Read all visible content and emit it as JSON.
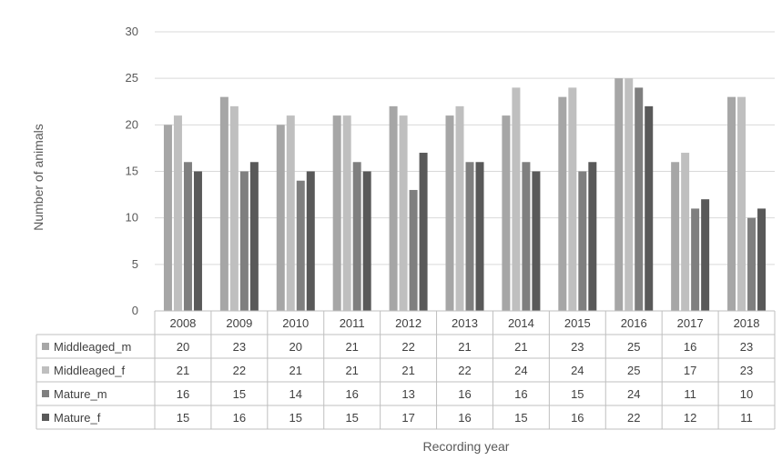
{
  "chart_data": {
    "type": "bar",
    "categories": [
      "2008",
      "2009",
      "2010",
      "2011",
      "2012",
      "2013",
      "2014",
      "2015",
      "2016",
      "2017",
      "2018"
    ],
    "series": [
      {
        "name": "Middleaged_m",
        "values": [
          20,
          23,
          20,
          21,
          22,
          21,
          21,
          23,
          25,
          16,
          23
        ],
        "color": "#a6a6a6"
      },
      {
        "name": "Middleaged_f",
        "values": [
          21,
          22,
          21,
          21,
          21,
          22,
          24,
          24,
          25,
          17,
          23
        ],
        "color": "#bfbfbf"
      },
      {
        "name": "Mature_m",
        "values": [
          16,
          15,
          14,
          16,
          13,
          16,
          16,
          15,
          24,
          11,
          10
        ],
        "color": "#7f7f7f"
      },
      {
        "name": "Mature_f",
        "values": [
          15,
          16,
          15,
          15,
          17,
          16,
          15,
          16,
          22,
          12,
          11
        ],
        "color": "#595959"
      }
    ],
    "xlabel": "Recording year",
    "ylabel": "Number of animals",
    "ylim": [
      0,
      30
    ],
    "yticks": [
      0,
      5,
      10,
      15,
      20,
      25,
      30
    ],
    "grid": true,
    "legend": "data-table"
  }
}
